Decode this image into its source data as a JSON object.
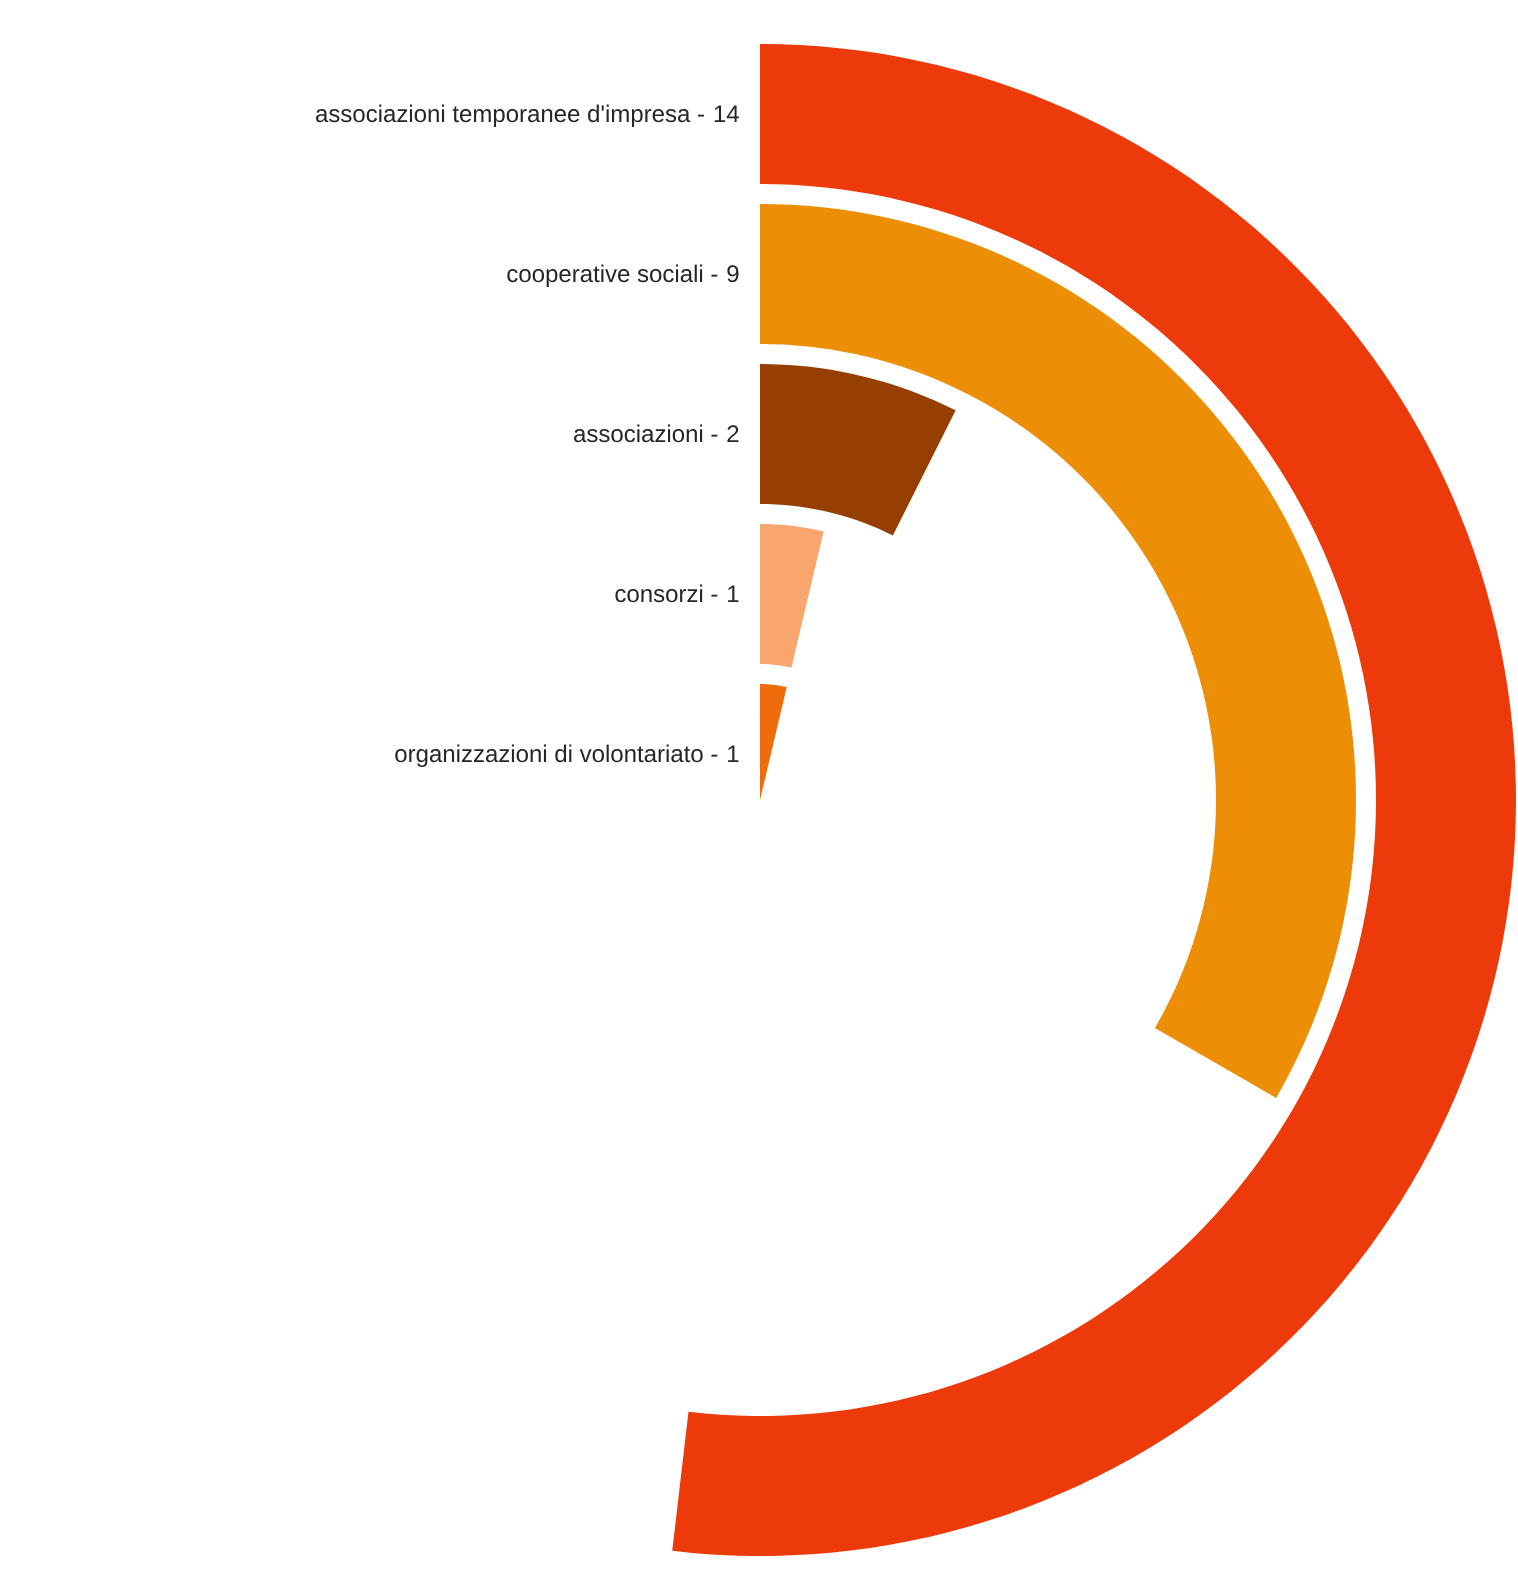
{
  "chart_data": {
    "type": "other",
    "categories": [
      "associazioni temporanee d'impresa -",
      "cooperative sociali -",
      "associazioni -",
      "consorzi -",
      "organizzazioni di volontariato -"
    ],
    "data_labels": true,
    "values": [
      14,
      9,
      2,
      1,
      1
    ],
    "colors": [
      "#ec3a0a",
      "#ec8f07",
      "#973f03",
      "#f8a66e",
      "#ef6c0c"
    ]
  }
}
